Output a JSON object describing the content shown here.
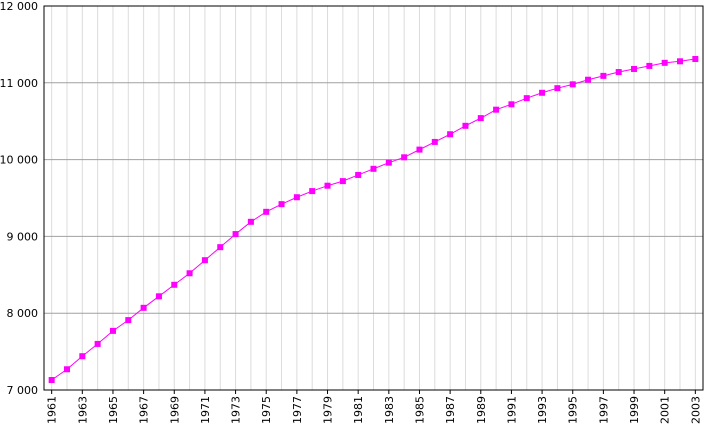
{
  "chart_data": {
    "type": "line",
    "x": [
      1961,
      1962,
      1963,
      1964,
      1965,
      1966,
      1967,
      1968,
      1969,
      1970,
      1971,
      1972,
      1973,
      1974,
      1975,
      1976,
      1977,
      1978,
      1979,
      1980,
      1981,
      1982,
      1983,
      1984,
      1985,
      1986,
      1987,
      1988,
      1989,
      1990,
      1991,
      1992,
      1993,
      1994,
      1995,
      1996,
      1997,
      1998,
      1999,
      2000,
      2001,
      2002,
      2003
    ],
    "series": [
      {
        "color": "#ff00ff",
        "values": [
          7130,
          7270,
          7440,
          7600,
          7770,
          7910,
          8070,
          8220,
          8370,
          8520,
          8690,
          8860,
          9030,
          9190,
          9320,
          9420,
          9510,
          9590,
          9660,
          9720,
          9800,
          9880,
          9960,
          10030,
          10130,
          10230,
          10330,
          10440,
          10540,
          10650,
          10720,
          10800,
          10870,
          10930,
          10980,
          11040,
          11090,
          11140,
          11180,
          11220,
          11260,
          11280,
          11310
        ]
      }
    ],
    "xlim": [
      1960.5,
      2003.5
    ],
    "xticks": [
      1961,
      1963,
      1965,
      1967,
      1969,
      1971,
      1973,
      1975,
      1977,
      1979,
      1981,
      1983,
      1985,
      1987,
      1989,
      1991,
      1993,
      1995,
      1997,
      1999,
      2001,
      2003
    ],
    "ylim": [
      7000,
      12000
    ],
    "yticks": [
      {
        "value": 7000,
        "label": "7 000"
      },
      {
        "value": 8000,
        "label": "8 000"
      },
      {
        "value": 9000,
        "label": "9 000"
      },
      {
        "value": 10000,
        "label": "10 000"
      },
      {
        "value": 11000,
        "label": "11 000"
      },
      {
        "value": 12000,
        "label": "12 000"
      }
    ],
    "grid": true
  }
}
